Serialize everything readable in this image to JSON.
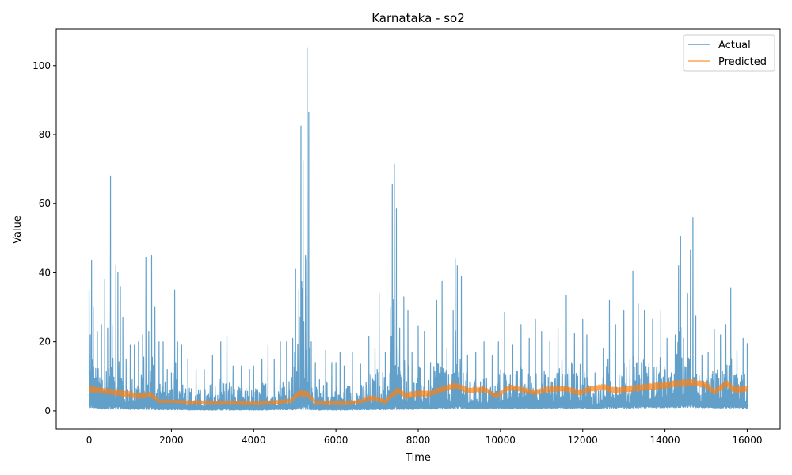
{
  "chart_data": {
    "type": "line",
    "title": "Karnataka - so2",
    "xlabel": "Time",
    "ylabel": "Value",
    "xlim": [
      -800,
      16800
    ],
    "ylim": [
      -5.3,
      110.5
    ],
    "xticks": [
      0,
      2000,
      4000,
      6000,
      8000,
      10000,
      12000,
      14000,
      16000
    ],
    "yticks": [
      0,
      20,
      40,
      60,
      80,
      100
    ],
    "legend": {
      "position": "top-right",
      "entries": [
        "Actual",
        "Predicted"
      ]
    },
    "series": [
      {
        "name": "Actual",
        "color": "#1f77b4",
        "opacity": 0.7,
        "note_values": "x: time index 0-16000; y_min/y_max: lower and upper envelope of the densely oscillating actual readings",
        "x": [
          0,
          30,
          60,
          100,
          200,
          300,
          380,
          450,
          520,
          560,
          650,
          700,
          760,
          820,
          900,
          1000,
          1100,
          1200,
          1300,
          1380,
          1450,
          1520,
          1600,
          1700,
          1800,
          1900,
          2000,
          2080,
          2150,
          2250,
          2400,
          2600,
          2800,
          3000,
          3200,
          3350,
          3500,
          3700,
          3900,
          4000,
          4200,
          4350,
          4500,
          4650,
          4800,
          4950,
          5020,
          5100,
          5150,
          5200,
          5260,
          5300,
          5340,
          5400,
          5500,
          5600,
          5750,
          5900,
          6000,
          6100,
          6200,
          6400,
          6600,
          6800,
          6950,
          7050,
          7200,
          7320,
          7370,
          7420,
          7470,
          7550,
          7650,
          7750,
          7850,
          8000,
          8150,
          8300,
          8450,
          8580,
          8700,
          8850,
          8900,
          8950,
          9050,
          9200,
          9400,
          9600,
          9800,
          9950,
          10100,
          10300,
          10500,
          10700,
          10850,
          11000,
          11200,
          11400,
          11600,
          11800,
          12000,
          12100,
          12300,
          12500,
          12650,
          12800,
          13000,
          13150,
          13220,
          13350,
          13500,
          13700,
          13900,
          14050,
          14250,
          14330,
          14380,
          14450,
          14550,
          14620,
          14680,
          14750,
          14900,
          15050,
          15200,
          15350,
          15480,
          15600,
          15750,
          15900,
          16000
        ],
        "y_max": [
          34.8,
          22,
          43.5,
          30,
          23,
          25,
          38,
          24,
          68,
          25,
          42,
          40,
          36,
          27,
          15,
          19,
          19,
          20,
          22,
          44.5,
          23,
          45,
          30,
          20,
          20,
          12,
          11,
          35,
          20,
          19,
          15,
          12,
          12,
          16,
          20,
          21.5,
          13,
          13,
          12,
          13,
          15,
          19,
          15,
          20,
          20,
          21,
          41,
          35,
          82.5,
          72.5,
          45,
          105,
          86.5,
          20,
          14,
          9,
          17.5,
          14,
          14,
          17,
          13,
          17,
          13.5,
          21.5,
          18,
          34,
          17,
          30,
          65.5,
          71.5,
          58.5,
          24,
          33,
          29,
          17,
          24.5,
          23,
          14,
          32,
          37.5,
          18,
          29,
          44,
          42,
          39,
          16,
          17,
          20,
          16,
          20,
          28.5,
          19,
          25,
          21,
          26.5,
          23,
          20,
          24,
          33.5,
          22.5,
          26.5,
          22,
          11,
          18,
          32,
          25,
          29,
          15,
          40.5,
          31,
          29,
          26.5,
          29,
          21,
          22,
          42,
          50.5,
          21,
          34,
          46.5,
          56,
          27.5,
          16,
          17,
          23.5,
          22,
          25,
          35.5,
          17.5,
          21,
          19.5
        ],
        "y_min": [
          0.8,
          1,
          1,
          0.8,
          0.7,
          0.5,
          0.5,
          0.5,
          0.5,
          0.5,
          0.5,
          0.5,
          0.5,
          0.5,
          0.5,
          0.4,
          0.4,
          0.4,
          0.4,
          0.4,
          0.4,
          0.4,
          0.3,
          0.3,
          0.3,
          0.3,
          0.3,
          0.3,
          0.3,
          0.3,
          0.2,
          0.2,
          0.2,
          0.2,
          0.2,
          0.2,
          0.2,
          0.2,
          0.2,
          0.2,
          0.2,
          0.2,
          0.3,
          0.3,
          0.3,
          0.3,
          0.4,
          0.4,
          0.4,
          0.4,
          0.4,
          0.4,
          0.4,
          0.3,
          0.3,
          0.2,
          0.2,
          0.2,
          0.2,
          0.2,
          0.2,
          0.2,
          0.3,
          0.3,
          0.3,
          0.3,
          0.3,
          0.4,
          0.4,
          0.4,
          0.4,
          0.4,
          0.4,
          0.4,
          0.4,
          0.5,
          0.5,
          0.5,
          0.5,
          0.5,
          0.6,
          0.6,
          0.6,
          0.6,
          0.6,
          0.6,
          0.6,
          0.6,
          0.6,
          0.6,
          0.6,
          0.6,
          0.6,
          0.6,
          0.6,
          0.6,
          0.6,
          0.6,
          0.6,
          0.6,
          0.6,
          0.6,
          0.6,
          0.7,
          0.7,
          0.7,
          0.7,
          0.7,
          0.8,
          0.8,
          0.8,
          0.8,
          0.9,
          0.9,
          0.9,
          1,
          1,
          1,
          1,
          1,
          1,
          0.9,
          0.9,
          0.9,
          0.8,
          0.8,
          0.8,
          0.8,
          0.8,
          0.7,
          0.7
        ]
      },
      {
        "name": "Predicted",
        "color": "#ff7f0e",
        "opacity": 0.7,
        "note_values": "y_min/y_max: band of the predicted series",
        "x": [
          0,
          300,
          600,
          900,
          1200,
          1500,
          1700,
          2000,
          2500,
          3000,
          3500,
          4000,
          4500,
          4900,
          5100,
          5300,
          5500,
          5800,
          6200,
          6600,
          6900,
          7200,
          7500,
          7700,
          8000,
          8300,
          8600,
          8900,
          9200,
          9600,
          9900,
          10200,
          10500,
          10800,
          11200,
          11600,
          11900,
          12200,
          12500,
          12800,
          13200,
          13600,
          14000,
          14400,
          14700,
          15000,
          15200,
          15500,
          15700,
          16000
        ],
        "y_min": [
          5.3,
          5,
          4.5,
          4,
          3.5,
          3.8,
          2.3,
          2.3,
          2.0,
          2.0,
          2.0,
          1.8,
          2.0,
          2.3,
          4.3,
          4.0,
          2.0,
          1.8,
          1.8,
          2.3,
          3.0,
          2.0,
          5.0,
          3.5,
          4.0,
          4.2,
          5.5,
          6.5,
          5.0,
          5.5,
          3.5,
          6.0,
          5.5,
          4.5,
          5.5,
          5.5,
          4.5,
          5.5,
          6.0,
          5.0,
          5.5,
          6.0,
          6.5,
          7.0,
          7.2,
          6.5,
          4.5,
          7.0,
          5.0,
          5.5
        ],
        "y_max": [
          7.2,
          6.8,
          6.2,
          5.8,
          5.0,
          5.5,
          3.3,
          3.2,
          3.0,
          2.8,
          2.8,
          2.6,
          3.0,
          3.5,
          6.2,
          5.6,
          3.0,
          2.8,
          2.8,
          3.2,
          4.6,
          3.2,
          7.0,
          5.2,
          6.0,
          5.8,
          7.2,
          8.2,
          6.8,
          7.0,
          5.0,
          7.6,
          7.0,
          6.0,
          7.2,
          7.2,
          6.2,
          7.2,
          7.8,
          6.8,
          7.4,
          8.0,
          8.4,
          9.0,
          9.2,
          8.4,
          6.2,
          9.0,
          7.0,
          7.4
        ]
      }
    ]
  }
}
